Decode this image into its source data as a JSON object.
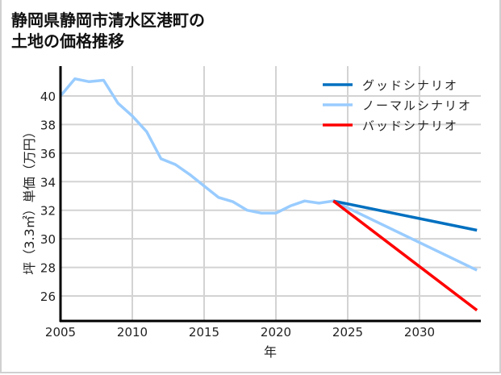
{
  "title_lines": [
    "静岡県静岡市清水区港町の",
    "土地の価格推移"
  ],
  "chart_data": {
    "type": "line",
    "title": "静岡県静岡市清水区港町の土地の価格推移",
    "xlabel": "年",
    "ylabel": "坪（3.3㎡）単価（万円）",
    "xlim": [
      2005,
      2034
    ],
    "ylim": [
      24.5,
      42
    ],
    "xticks": [
      2005,
      2010,
      2015,
      2020,
      2025,
      2030
    ],
    "yticks": [
      26,
      28,
      30,
      32,
      34,
      36,
      38,
      40
    ],
    "grid": true,
    "legend_position": "upper right",
    "series": [
      {
        "name": "グッドシナリオ",
        "color": "#0070c0",
        "x": [
          2024,
          2034
        ],
        "values": [
          32.65,
          30.6
        ]
      },
      {
        "name": "ノーマルシナリオ",
        "color": "#99ccff",
        "x": [
          2005,
          2006,
          2007,
          2008,
          2009,
          2010,
          2011,
          2012,
          2013,
          2014,
          2015,
          2016,
          2017,
          2018,
          2019,
          2020,
          2021,
          2022,
          2023,
          2024,
          2034
        ],
        "values": [
          40.0,
          41.2,
          41.0,
          41.1,
          39.5,
          38.6,
          37.5,
          35.6,
          35.2,
          34.5,
          33.7,
          32.9,
          32.6,
          32.0,
          31.8,
          31.8,
          32.3,
          32.65,
          32.5,
          32.65,
          27.8
        ]
      },
      {
        "name": "バッドシナリオ",
        "color": "#ff0000",
        "x": [
          2024,
          2034
        ],
        "values": [
          32.65,
          25.0
        ]
      }
    ]
  }
}
